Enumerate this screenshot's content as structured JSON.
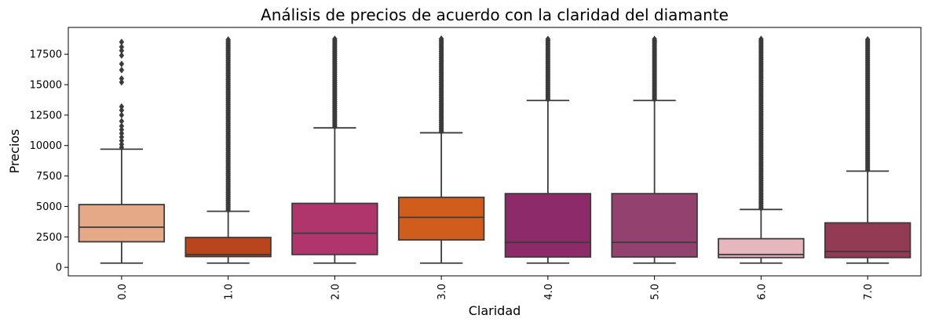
{
  "chart_data": {
    "type": "box",
    "title": "Análisis de precios de acuerdo con la claridad del diamante",
    "xlabel": "Claridad",
    "ylabel": "Precios",
    "ylim": [
      -700,
      19700
    ],
    "yticks": [
      0,
      2500,
      5000,
      7500,
      10000,
      12500,
      15000,
      17500
    ],
    "grid": false,
    "categories": [
      "0.0",
      "1.0",
      "2.0",
      "3.0",
      "4.0",
      "5.0",
      "6.0",
      "7.0"
    ],
    "boxes": [
      {
        "category": "0.0",
        "color": "#E5A987",
        "min": 345,
        "q1": 2100,
        "median": 3300,
        "q3": 5150,
        "max": 9700,
        "outliers": [
          9850,
          10100,
          10400,
          10700,
          11000,
          11300,
          11600,
          12000,
          12500,
          12900,
          13200,
          15200,
          15500,
          16200,
          16700,
          17400,
          17800,
          18100,
          18500
        ]
      },
      {
        "category": "1.0",
        "color": "#B9451C",
        "min": 345,
        "q1": 880,
        "median": 1050,
        "q3": 2450,
        "max": 4600,
        "outliers_range": [
          4700,
          18800
        ]
      },
      {
        "category": "2.0",
        "color": "#B0356D",
        "min": 345,
        "q1": 1050,
        "median": 2800,
        "q3": 5250,
        "max": 11450,
        "outliers_range": [
          11550,
          18800
        ]
      },
      {
        "category": "3.0",
        "color": "#D15D1C",
        "min": 345,
        "q1": 2250,
        "median": 4100,
        "q3": 5750,
        "max": 11050,
        "outliers_range": [
          11150,
          18800
        ]
      },
      {
        "category": "4.0",
        "color": "#8D2A69",
        "min": 345,
        "q1": 850,
        "median": 2050,
        "q3": 6050,
        "max": 13700,
        "outliers_range": [
          13800,
          18800
        ]
      },
      {
        "category": "5.0",
        "color": "#93416E",
        "min": 345,
        "q1": 850,
        "median": 2050,
        "q3": 6050,
        "max": 13700,
        "outliers_range": [
          13800,
          18800
        ]
      },
      {
        "category": "6.0",
        "color": "#E6B8BD",
        "min": 345,
        "q1": 800,
        "median": 1050,
        "q3": 2350,
        "max": 4750,
        "outliers_range": [
          4850,
          18800
        ]
      },
      {
        "category": "7.0",
        "color": "#933B54",
        "min": 345,
        "q1": 800,
        "median": 1300,
        "q3": 3650,
        "max": 7900,
        "outliers_range": [
          8000,
          18800
        ]
      }
    ]
  }
}
